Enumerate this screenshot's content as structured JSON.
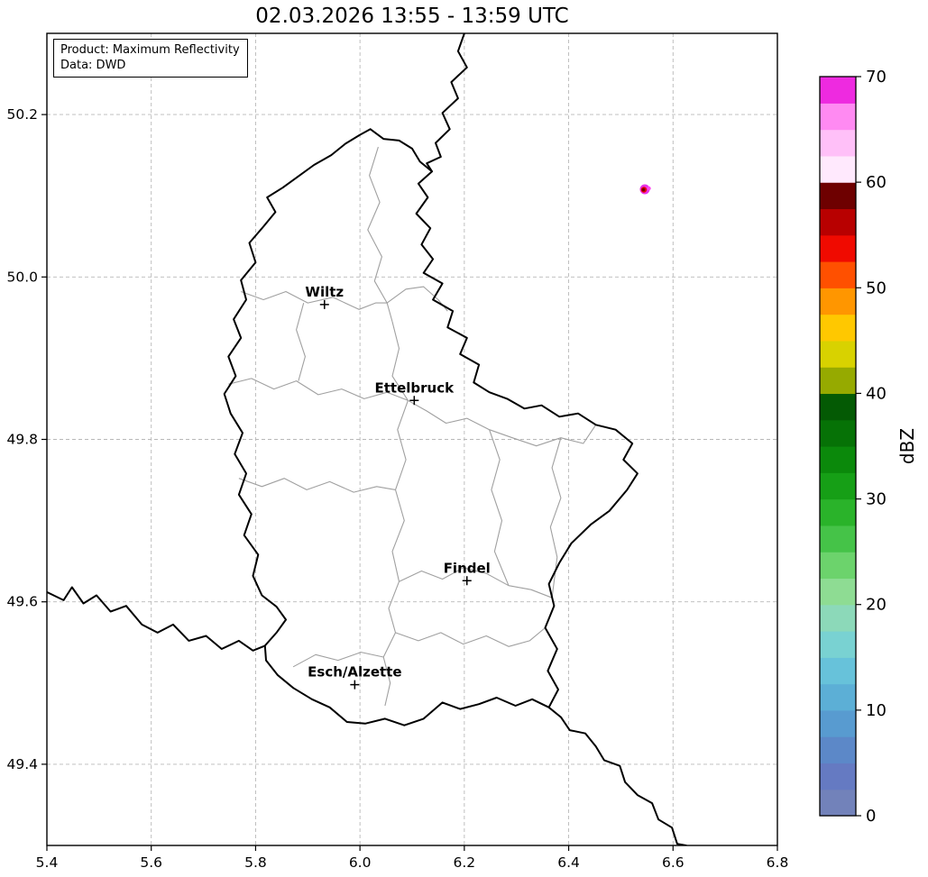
{
  "title": "02.03.2026 13:55 - 13:59 UTC",
  "annotation": {
    "line1": "Product: Maximum Reflectivity",
    "line2": "Data: DWD"
  },
  "axes": {
    "x": {
      "min": 5.4,
      "max": 6.8,
      "ticks": [
        5.4,
        5.6,
        5.8,
        6.0,
        6.2,
        6.4,
        6.6,
        6.8
      ],
      "tick_labels": [
        "5.4",
        "5.6",
        "5.8",
        "6.0",
        "6.2",
        "6.4",
        "6.6",
        "6.8"
      ]
    },
    "y": {
      "min": 49.3,
      "max": 50.3,
      "ticks": [
        49.4,
        49.6,
        49.8,
        50.0,
        50.2
      ],
      "tick_labels": [
        "49.4",
        "49.6",
        "49.8",
        "50.0",
        "50.2"
      ]
    },
    "grid": true
  },
  "style": {
    "background": "#ffffff",
    "grid_color": "#b8b8b8",
    "axis_color": "#000000"
  },
  "map": {
    "border_color": "#000000",
    "district_color": "#a0a0a0",
    "cities": [
      {
        "name": "Wiltz",
        "lon": 5.932,
        "lat": 49.966
      },
      {
        "name": "Ettelbruck",
        "lon": 6.104,
        "lat": 49.848
      },
      {
        "name": "Findel",
        "lon": 6.205,
        "lat": 49.626
      },
      {
        "name": "Esch/Alzette",
        "lon": 5.99,
        "lat": 49.498
      }
    ],
    "country_borders": [
      {
        "name": "luxembourg",
        "points": [
          [
            6.02,
            50.182
          ],
          [
            6.045,
            50.17
          ],
          [
            6.075,
            50.168
          ],
          [
            6.1,
            50.158
          ],
          [
            6.115,
            50.142
          ],
          [
            6.138,
            50.13
          ],
          [
            6.112,
            50.115
          ],
          [
            6.13,
            50.098
          ],
          [
            6.108,
            50.078
          ],
          [
            6.135,
            50.06
          ],
          [
            6.118,
            50.04
          ],
          [
            6.14,
            50.022
          ],
          [
            6.122,
            50.005
          ],
          [
            6.158,
            49.992
          ],
          [
            6.14,
            49.972
          ],
          [
            6.178,
            49.958
          ],
          [
            6.168,
            49.938
          ],
          [
            6.205,
            49.925
          ],
          [
            6.192,
            49.905
          ],
          [
            6.228,
            49.892
          ],
          [
            6.218,
            49.87
          ],
          [
            6.248,
            49.858
          ],
          [
            6.282,
            49.85
          ],
          [
            6.315,
            49.838
          ],
          [
            6.348,
            49.842
          ],
          [
            6.382,
            49.828
          ],
          [
            6.418,
            49.832
          ],
          [
            6.452,
            49.818
          ],
          [
            6.49,
            49.812
          ],
          [
            6.522,
            49.795
          ],
          [
            6.505,
            49.775
          ],
          [
            6.532,
            49.758
          ],
          [
            6.512,
            49.738
          ],
          [
            6.478,
            49.712
          ],
          [
            6.442,
            49.695
          ],
          [
            6.405,
            49.672
          ],
          [
            6.382,
            49.648
          ],
          [
            6.362,
            49.622
          ],
          [
            6.372,
            49.595
          ],
          [
            6.355,
            49.568
          ],
          [
            6.378,
            49.542
          ],
          [
            6.36,
            49.515
          ],
          [
            6.38,
            49.492
          ],
          [
            6.362,
            49.47
          ],
          [
            6.33,
            49.48
          ],
          [
            6.298,
            49.472
          ],
          [
            6.262,
            49.482
          ],
          [
            6.228,
            49.474
          ],
          [
            6.192,
            49.468
          ],
          [
            6.158,
            49.476
          ],
          [
            6.122,
            49.456
          ],
          [
            6.085,
            49.448
          ],
          [
            6.048,
            49.456
          ],
          [
            6.01,
            49.45
          ],
          [
            5.975,
            49.452
          ],
          [
            5.942,
            49.47
          ],
          [
            5.908,
            49.48
          ],
          [
            5.872,
            49.494
          ],
          [
            5.842,
            49.51
          ],
          [
            5.82,
            49.528
          ],
          [
            5.818,
            49.546
          ],
          [
            5.84,
            49.562
          ],
          [
            5.858,
            49.578
          ],
          [
            5.84,
            49.594
          ],
          [
            5.812,
            49.608
          ],
          [
            5.795,
            49.632
          ],
          [
            5.805,
            49.658
          ],
          [
            5.778,
            49.682
          ],
          [
            5.792,
            49.708
          ],
          [
            5.768,
            49.732
          ],
          [
            5.782,
            49.758
          ],
          [
            5.76,
            49.782
          ],
          [
            5.775,
            49.808
          ],
          [
            5.752,
            49.832
          ],
          [
            5.74,
            49.856
          ],
          [
            5.762,
            49.878
          ],
          [
            5.748,
            49.902
          ],
          [
            5.772,
            49.925
          ],
          [
            5.758,
            49.948
          ],
          [
            5.782,
            49.972
          ],
          [
            5.772,
            49.996
          ],
          [
            5.8,
            50.018
          ],
          [
            5.788,
            50.042
          ],
          [
            5.815,
            50.062
          ],
          [
            5.838,
            50.08
          ],
          [
            5.822,
            50.098
          ],
          [
            5.852,
            50.11
          ],
          [
            5.882,
            50.124
          ],
          [
            5.912,
            50.138
          ],
          [
            5.945,
            50.15
          ],
          [
            5.972,
            50.164
          ],
          [
            6.0,
            50.175
          ],
          [
            6.02,
            50.182
          ]
        ]
      },
      {
        "name": "belgium-germany",
        "points": [
          [
            6.2,
            50.3
          ],
          [
            6.188,
            50.278
          ],
          [
            6.205,
            50.258
          ],
          [
            6.175,
            50.24
          ],
          [
            6.188,
            50.22
          ],
          [
            6.158,
            50.202
          ],
          [
            6.172,
            50.182
          ],
          [
            6.145,
            50.165
          ],
          [
            6.155,
            50.148
          ],
          [
            6.128,
            50.14
          ],
          [
            6.138,
            50.13
          ]
        ]
      },
      {
        "name": "france-belgium",
        "points": [
          [
            5.4,
            49.612
          ],
          [
            5.432,
            49.602
          ],
          [
            5.448,
            49.618
          ],
          [
            5.47,
            49.598
          ],
          [
            5.495,
            49.608
          ],
          [
            5.522,
            49.588
          ],
          [
            5.552,
            49.595
          ],
          [
            5.582,
            49.572
          ],
          [
            5.612,
            49.562
          ],
          [
            5.642,
            49.572
          ],
          [
            5.672,
            49.552
          ],
          [
            5.705,
            49.558
          ],
          [
            5.735,
            49.542
          ],
          [
            5.768,
            49.552
          ],
          [
            5.795,
            49.54
          ],
          [
            5.818,
            49.546
          ]
        ]
      },
      {
        "name": "france-germany",
        "points": [
          [
            6.362,
            49.47
          ],
          [
            6.385,
            49.458
          ],
          [
            6.402,
            49.442
          ],
          [
            6.432,
            49.438
          ],
          [
            6.452,
            49.422
          ],
          [
            6.468,
            49.405
          ],
          [
            6.498,
            49.398
          ],
          [
            6.508,
            49.378
          ],
          [
            6.532,
            49.362
          ],
          [
            6.56,
            49.352
          ],
          [
            6.572,
            49.332
          ],
          [
            6.598,
            49.322
          ],
          [
            6.608,
            49.302
          ],
          [
            6.625,
            49.3
          ]
        ]
      }
    ],
    "district_borders": [
      [
        [
          6.035,
          50.16
        ],
        [
          6.018,
          50.125
        ],
        [
          6.038,
          50.092
        ],
        [
          6.015,
          50.058
        ],
        [
          6.042,
          50.025
        ],
        [
          6.028,
          49.995
        ],
        [
          6.052,
          49.968
        ],
        [
          6.062,
          49.945
        ]
      ],
      [
        [
          5.772,
          49.982
        ],
        [
          5.815,
          49.972
        ],
        [
          5.858,
          49.982
        ],
        [
          5.9,
          49.968
        ],
        [
          5.948,
          49.975
        ],
        [
          5.998,
          49.96
        ],
        [
          6.03,
          49.968
        ],
        [
          6.052,
          49.968
        ]
      ],
      [
        [
          6.052,
          49.968
        ],
        [
          6.088,
          49.985
        ],
        [
          6.122,
          49.988
        ],
        [
          6.15,
          49.972
        ],
        [
          6.168,
          49.958
        ]
      ],
      [
        [
          5.748,
          49.868
        ],
        [
          5.792,
          49.875
        ],
        [
          5.835,
          49.862
        ],
        [
          5.878,
          49.872
        ],
        [
          5.92,
          49.855
        ],
        [
          5.965,
          49.862
        ],
        [
          6.008,
          49.85
        ],
        [
          6.052,
          49.858
        ],
        [
          6.092,
          49.848
        ]
      ],
      [
        [
          6.092,
          49.848
        ],
        [
          6.128,
          49.835
        ],
        [
          6.165,
          49.82
        ],
        [
          6.205,
          49.826
        ],
        [
          6.248,
          49.812
        ],
        [
          6.292,
          49.802
        ],
        [
          6.338,
          49.792
        ],
        [
          6.385,
          49.802
        ],
        [
          6.428,
          49.795
        ],
        [
          6.452,
          49.818
        ]
      ],
      [
        [
          6.092,
          49.848
        ],
        [
          6.072,
          49.812
        ],
        [
          6.088,
          49.775
        ],
        [
          6.068,
          49.738
        ],
        [
          6.085,
          49.7
        ],
        [
          6.062,
          49.662
        ],
        [
          6.075,
          49.625
        ]
      ],
      [
        [
          5.768,
          49.752
        ],
        [
          5.812,
          49.742
        ],
        [
          5.855,
          49.752
        ],
        [
          5.898,
          49.738
        ],
        [
          5.942,
          49.748
        ],
        [
          5.988,
          49.735
        ],
        [
          6.032,
          49.742
        ],
        [
          6.068,
          49.738
        ]
      ],
      [
        [
          6.075,
          49.625
        ],
        [
          6.118,
          49.638
        ],
        [
          6.158,
          49.628
        ],
        [
          6.198,
          49.642
        ],
        [
          6.242,
          49.635
        ],
        [
          6.285,
          49.62
        ],
        [
          6.328,
          49.615
        ],
        [
          6.368,
          49.605
        ]
      ],
      [
        [
          6.075,
          49.625
        ],
        [
          6.055,
          49.592
        ],
        [
          6.068,
          49.562
        ],
        [
          6.045,
          49.532
        ],
        [
          6.058,
          49.5
        ],
        [
          6.048,
          49.472
        ]
      ],
      [
        [
          6.068,
          49.562
        ],
        [
          6.112,
          49.552
        ],
        [
          6.155,
          49.562
        ],
        [
          6.198,
          49.548
        ],
        [
          6.242,
          49.558
        ],
        [
          6.285,
          49.545
        ],
        [
          6.325,
          49.552
        ],
        [
          6.355,
          49.568
        ]
      ],
      [
        [
          6.248,
          49.812
        ],
        [
          6.268,
          49.775
        ],
        [
          6.252,
          49.738
        ],
        [
          6.272,
          49.7
        ],
        [
          6.258,
          49.662
        ],
        [
          6.285,
          49.62
        ]
      ],
      [
        [
          6.385,
          49.802
        ],
        [
          6.368,
          49.765
        ],
        [
          6.385,
          49.728
        ],
        [
          6.365,
          49.692
        ],
        [
          6.378,
          49.655
        ],
        [
          6.368,
          49.605
        ]
      ],
      [
        [
          5.892,
          49.968
        ],
        [
          5.878,
          49.935
        ],
        [
          5.895,
          49.902
        ],
        [
          5.882,
          49.872
        ]
      ],
      [
        [
          6.062,
          49.945
        ],
        [
          6.075,
          49.912
        ],
        [
          6.062,
          49.878
        ],
        [
          6.092,
          49.848
        ]
      ],
      [
        [
          6.045,
          49.532
        ],
        [
          6.002,
          49.538
        ],
        [
          5.958,
          49.528
        ],
        [
          5.915,
          49.535
        ],
        [
          5.872,
          49.52
        ]
      ]
    ]
  },
  "radar_echo": {
    "lon": 6.546,
    "lat": 50.108,
    "blobs": [
      {
        "dx": 0,
        "dy": 0,
        "r": 5.5,
        "color": "#e832e8"
      },
      {
        "dx": 4.5,
        "dy": -1,
        "r": 2.2,
        "color": "#ff44f0"
      },
      {
        "dx": -1,
        "dy": 0.5,
        "r": 3.2,
        "color": "#e60000"
      },
      {
        "dx": -1.5,
        "dy": 0.5,
        "r": 1.8,
        "color": "#6e0000"
      }
    ]
  },
  "colorbar": {
    "label": "dBZ",
    "min": 0,
    "max": 70,
    "ticks": [
      0,
      10,
      20,
      30,
      40,
      50,
      60,
      70
    ],
    "band_size": 2.5,
    "bands_bottom_to_top": [
      "#7282ba",
      "#657ac2",
      "#5c88c8",
      "#589bd0",
      "#5cafd6",
      "#67c2da",
      "#79d2d2",
      "#8cd9b9",
      "#8edc93",
      "#6cd36c",
      "#45c348",
      "#2ab32a",
      "#169f16",
      "#0b890b",
      "#067206",
      "#045a04",
      "#96aa00",
      "#d8d200",
      "#ffc800",
      "#ff9600",
      "#ff5000",
      "#f00a00",
      "#b80000",
      "#6e0000",
      "#ffe9fd",
      "#ffc0f8",
      "#ff8af2",
      "#ee2ae0"
    ]
  }
}
